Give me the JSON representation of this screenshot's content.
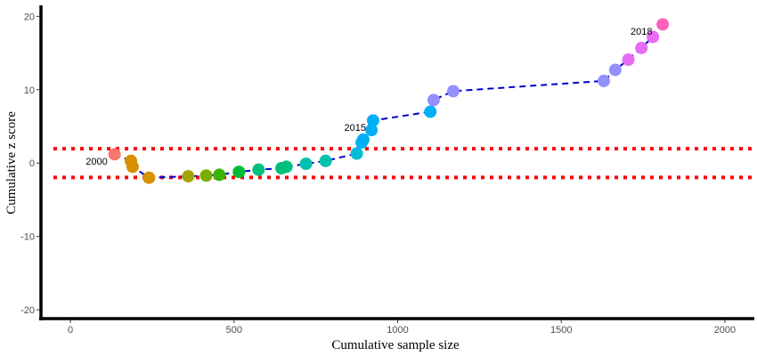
{
  "chart_data": {
    "type": "scatter",
    "title": "",
    "xlabel": "Cumulative sample size",
    "ylabel": "Cumulative z score",
    "xlim": [
      -90,
      2090
    ],
    "ylim": [
      -21.2,
      21.5
    ],
    "x_ticks": [
      0,
      500,
      1000,
      1500,
      2000
    ],
    "y_ticks": [
      -20,
      -10,
      0,
      10,
      20
    ],
    "grid": false,
    "legend": "none",
    "line_color": "#0000CD",
    "threshold_color": "#FF0000",
    "thresholds": [
      1.96,
      -1.96
    ],
    "annotations": [
      {
        "text": "2000",
        "x": 80,
        "y": 0.3
      },
      {
        "text": "2015",
        "x": 870,
        "y": 4.9
      },
      {
        "text": "2018",
        "x": 1745,
        "y": 18.0
      }
    ],
    "points": [
      {
        "x": 135,
        "y": 1.2,
        "color": "#F8766D"
      },
      {
        "x": 185,
        "y": 0.3,
        "color": "#D89000"
      },
      {
        "x": 190,
        "y": -0.5,
        "color": "#D89000"
      },
      {
        "x": 240,
        "y": -2.0,
        "color": "#D89000"
      },
      {
        "x": 360,
        "y": -1.8,
        "color": "#A3A500"
      },
      {
        "x": 415,
        "y": -1.7,
        "color": "#7CAE00"
      },
      {
        "x": 455,
        "y": -1.6,
        "color": "#39B600"
      },
      {
        "x": 515,
        "y": -1.2,
        "color": "#00BA38"
      },
      {
        "x": 575,
        "y": -0.9,
        "color": "#00BF7D"
      },
      {
        "x": 645,
        "y": -0.7,
        "color": "#00BF7D"
      },
      {
        "x": 660,
        "y": -0.5,
        "color": "#00BF7D"
      },
      {
        "x": 720,
        "y": -0.1,
        "color": "#00C0AF"
      },
      {
        "x": 780,
        "y": 0.3,
        "color": "#00C0AF"
      },
      {
        "x": 875,
        "y": 1.3,
        "color": "#00BCD8"
      },
      {
        "x": 890,
        "y": 2.8,
        "color": "#00B0F6"
      },
      {
        "x": 895,
        "y": 3.2,
        "color": "#00B0F6"
      },
      {
        "x": 920,
        "y": 4.5,
        "color": "#00B0F6"
      },
      {
        "x": 925,
        "y": 5.8,
        "color": "#00B0F6"
      },
      {
        "x": 1100,
        "y": 7.0,
        "color": "#00B0F6"
      },
      {
        "x": 1110,
        "y": 8.6,
        "color": "#9590FF"
      },
      {
        "x": 1170,
        "y": 9.8,
        "color": "#9590FF"
      },
      {
        "x": 1630,
        "y": 11.2,
        "color": "#9590FF"
      },
      {
        "x": 1665,
        "y": 12.7,
        "color": "#9590FF"
      },
      {
        "x": 1705,
        "y": 14.1,
        "color": "#E76BF3"
      },
      {
        "x": 1745,
        "y": 15.7,
        "color": "#E76BF3"
      },
      {
        "x": 1780,
        "y": 17.2,
        "color": "#E76BF3"
      },
      {
        "x": 1810,
        "y": 18.9,
        "color": "#FF62BC"
      }
    ]
  }
}
